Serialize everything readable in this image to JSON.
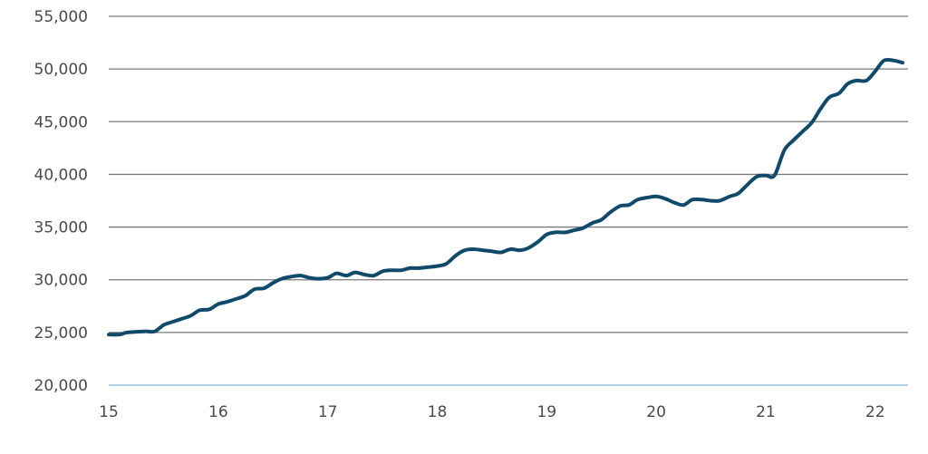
{
  "chart_data": {
    "type": "line",
    "title": "",
    "xlabel": "",
    "ylabel": "",
    "xlim": [
      15,
      22.3
    ],
    "ylim": [
      20000,
      55000
    ],
    "yticks": [
      20000,
      25000,
      30000,
      35000,
      40000,
      45000,
      50000,
      55000
    ],
    "ytick_labels": [
      "20,000",
      "25,000",
      "30,000",
      "35,000",
      "40,000",
      "45,000",
      "50,000",
      "55,000"
    ],
    "xticks": [
      15,
      16,
      17,
      18,
      19,
      20,
      21,
      22
    ],
    "xtick_labels": [
      "15",
      "16",
      "17",
      "18",
      "19",
      "20",
      "21",
      "22"
    ],
    "grid": true,
    "legend": "none",
    "colors": {
      "line": "#0f4a6b",
      "grid": "#7a7a7a",
      "baseline": "#b7d3e3",
      "text": "#4a4a4a"
    },
    "series": [
      {
        "x": [
          15.0,
          15.1,
          15.17,
          15.33,
          15.42,
          15.5,
          15.58,
          15.67,
          15.75,
          15.83,
          15.92,
          16.0,
          16.08,
          16.17,
          16.25,
          16.33,
          16.42,
          16.5,
          16.58,
          16.67,
          16.75,
          16.83,
          16.9,
          17.0,
          17.08,
          17.17,
          17.25,
          17.33,
          17.42,
          17.5,
          17.58,
          17.67,
          17.75,
          17.83,
          17.92,
          18.0,
          18.08,
          18.17,
          18.25,
          18.33,
          18.42,
          18.5,
          18.58,
          18.67,
          18.75,
          18.83,
          18.92,
          19.0,
          19.08,
          19.17,
          19.25,
          19.33,
          19.42,
          19.5,
          19.58,
          19.67,
          19.75,
          19.83,
          19.92,
          20.0,
          20.08,
          20.17,
          20.25,
          20.33,
          20.42,
          20.5,
          20.58,
          20.67,
          20.75,
          20.83,
          20.92,
          21.0,
          21.08,
          21.17,
          21.25,
          21.33,
          21.42,
          21.5,
          21.58,
          21.67,
          21.75,
          21.83,
          21.92,
          22.0,
          22.08,
          22.17,
          22.25
        ],
        "y": [
          24800,
          24800,
          25000,
          25100,
          25100,
          25700,
          26000,
          26300,
          26600,
          27100,
          27200,
          27700,
          27900,
          28200,
          28500,
          29100,
          29200,
          29700,
          30100,
          30300,
          30400,
          30200,
          30100,
          30200,
          30600,
          30400,
          30700,
          30500,
          30400,
          30800,
          30900,
          30900,
          31100,
          31100,
          31200,
          31300,
          31500,
          32300,
          32800,
          32900,
          32800,
          32700,
          32600,
          32900,
          32800,
          33000,
          33600,
          34300,
          34500,
          34500,
          34700,
          34900,
          35400,
          35700,
          36400,
          37000,
          37100,
          37600,
          37800,
          37900,
          37700,
          37300,
          37100,
          37600,
          37600,
          37500,
          37500,
          37900,
          38200,
          39000,
          39800,
          39900,
          39900,
          42300,
          43200,
          44000,
          44900,
          46200,
          47300,
          47700,
          48600,
          48900,
          48900,
          49800,
          50800,
          50800,
          50600
        ]
      }
    ]
  }
}
